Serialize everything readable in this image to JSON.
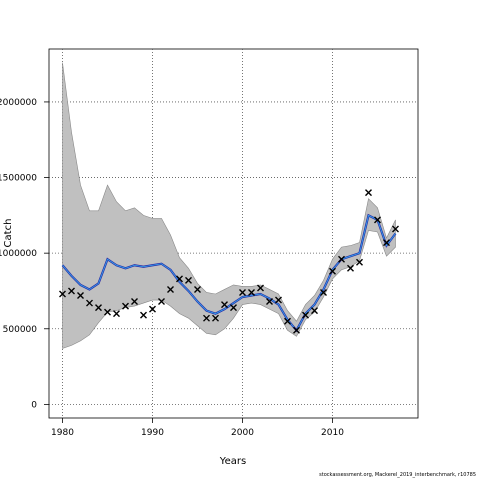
{
  "chart_data": {
    "type": "line",
    "title": "",
    "xlabel": "Years",
    "ylabel": "Catch",
    "xlim": [
      1978.5,
      2019.5
    ],
    "ylim": [
      -90000,
      2350000
    ],
    "x_ticks": [
      1980,
      1990,
      2000,
      2010
    ],
    "y_ticks": [
      0,
      500000,
      1000000,
      1500000,
      2000000
    ],
    "y_tick_labels": [
      "0",
      "500000",
      "1000000",
      "1500000",
      "2000000"
    ],
    "grid": true,
    "legend": "none",
    "colors": {
      "band": "#c0c0c0",
      "band_edge": "#888888",
      "estimate_dark": "#2b2ba8",
      "estimate_light": "#33aaee",
      "observed": "#000000"
    },
    "years": [
      1980,
      1981,
      1982,
      1983,
      1984,
      1985,
      1986,
      1987,
      1988,
      1989,
      1990,
      1991,
      1992,
      1993,
      1994,
      1995,
      1996,
      1997,
      1998,
      1999,
      2000,
      2001,
      2002,
      2003,
      2004,
      2005,
      2006,
      2007,
      2008,
      2009,
      2010,
      2011,
      2012,
      2013,
      2014,
      2015,
      2016,
      2017
    ],
    "series": [
      {
        "role": "upper_bound",
        "values": [
          2260000,
          1800000,
          1450000,
          1280000,
          1280000,
          1450000,
          1340000,
          1280000,
          1300000,
          1250000,
          1230000,
          1230000,
          1120000,
          970000,
          900000,
          800000,
          740000,
          730000,
          760000,
          790000,
          780000,
          780000,
          790000,
          760000,
          730000,
          620000,
          550000,
          660000,
          720000,
          820000,
          960000,
          1040000,
          1050000,
          1070000,
          1360000,
          1300000,
          1100000,
          1220000
        ]
      },
      {
        "role": "lower_bound",
        "values": [
          370000,
          390000,
          420000,
          460000,
          540000,
          610000,
          620000,
          640000,
          650000,
          670000,
          690000,
          690000,
          650000,
          600000,
          570000,
          520000,
          470000,
          460000,
          500000,
          570000,
          660000,
          670000,
          660000,
          630000,
          600000,
          490000,
          450000,
          560000,
          610000,
          710000,
          830000,
          890000,
          910000,
          950000,
          1150000,
          1140000,
          980000,
          1040000
        ]
      },
      {
        "role": "estimate",
        "values": [
          920000,
          850000,
          790000,
          760000,
          800000,
          960000,
          920000,
          900000,
          920000,
          910000,
          920000,
          930000,
          890000,
          810000,
          750000,
          680000,
          620000,
          600000,
          630000,
          670000,
          710000,
          720000,
          730000,
          700000,
          660000,
          560000,
          490000,
          600000,
          660000,
          760000,
          890000,
          960000,
          980000,
          1000000,
          1250000,
          1220000,
          1050000,
          1130000
        ]
      },
      {
        "role": "observed",
        "values": [
          730000,
          750000,
          720000,
          670000,
          640000,
          610000,
          600000,
          650000,
          680000,
          590000,
          630000,
          680000,
          760000,
          830000,
          820000,
          760000,
          570000,
          570000,
          660000,
          640000,
          740000,
          740000,
          770000,
          680000,
          690000,
          550000,
          490000,
          590000,
          620000,
          740000,
          880000,
          960000,
          900000,
          940000,
          1400000,
          1220000,
          1070000,
          1160000
        ]
      }
    ]
  },
  "footer_text": "stockassessment.org, Mackerel_2019_interbenchmark, r10785"
}
